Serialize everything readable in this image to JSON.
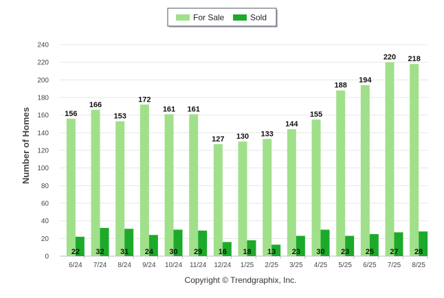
{
  "chart_data": {
    "type": "bar",
    "categories": [
      "6/24",
      "7/24",
      "8/24",
      "9/24",
      "10/24",
      "11/24",
      "12/24",
      "1/25",
      "2/25",
      "3/25",
      "4/25",
      "5/25",
      "6/25",
      "7/25",
      "8/25"
    ],
    "series": [
      {
        "name": "For Sale",
        "color": "#a0e08a",
        "values": [
          156,
          166,
          153,
          172,
          161,
          161,
          127,
          130,
          133,
          144,
          155,
          188,
          194,
          220,
          218
        ]
      },
      {
        "name": "Sold",
        "color": "#1daa2a",
        "values": [
          22,
          32,
          31,
          24,
          30,
          29,
          16,
          18,
          13,
          23,
          30,
          23,
          25,
          27,
          28
        ]
      }
    ],
    "yticks": [
      0,
      20,
      40,
      60,
      80,
      100,
      120,
      140,
      160,
      180,
      200,
      220,
      240
    ],
    "ylim": [
      0,
      240
    ],
    "xlabel": "",
    "ylabel": "Number of Homes",
    "legend": "top-center",
    "grid": true
  },
  "footer": {
    "copyright": "Copyright © Trendgraphix, Inc."
  }
}
